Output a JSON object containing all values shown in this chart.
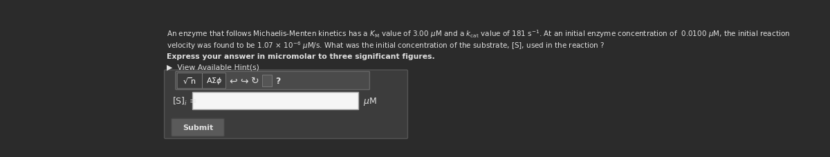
{
  "bg_color": "#2b2b2b",
  "panel_bg": "#3c3c3c",
  "panel_border": "#555555",
  "text_color": "#e0e0e0",
  "main_text_line1": "An enzyme that follows Michaelis-Menten kinetics has a $K_\\mathrm{M}$ value of 3.00 $\\mu$M and a $k_\\mathrm{cat}$ value of 181 s$^{-1}$. At an initial enzyme concentration of  0.0100 $\\mu$M, the initial reaction",
  "main_text_line2": "velocity was found to be 1.07 × 10$^{-6}$ $\\mu$M/s. What was the initial concentration of the substrate, [S], used in the reaction ?",
  "bold_text": "Express your answer in micromolar to three significant figures.",
  "hint_text": "▶  View Available Hint(s)",
  "toolbar_bg": "#4a4a4a",
  "toolbar_border": "#666666",
  "input_bg": "#f5f5f5",
  "input_border": "#aaaaaa",
  "input_label": "[S]$_i$ =",
  "input_unit": "$\\mu$M",
  "submit_bg": "#5a5a5a",
  "submit_text": "Submit",
  "submit_border": "#444444"
}
